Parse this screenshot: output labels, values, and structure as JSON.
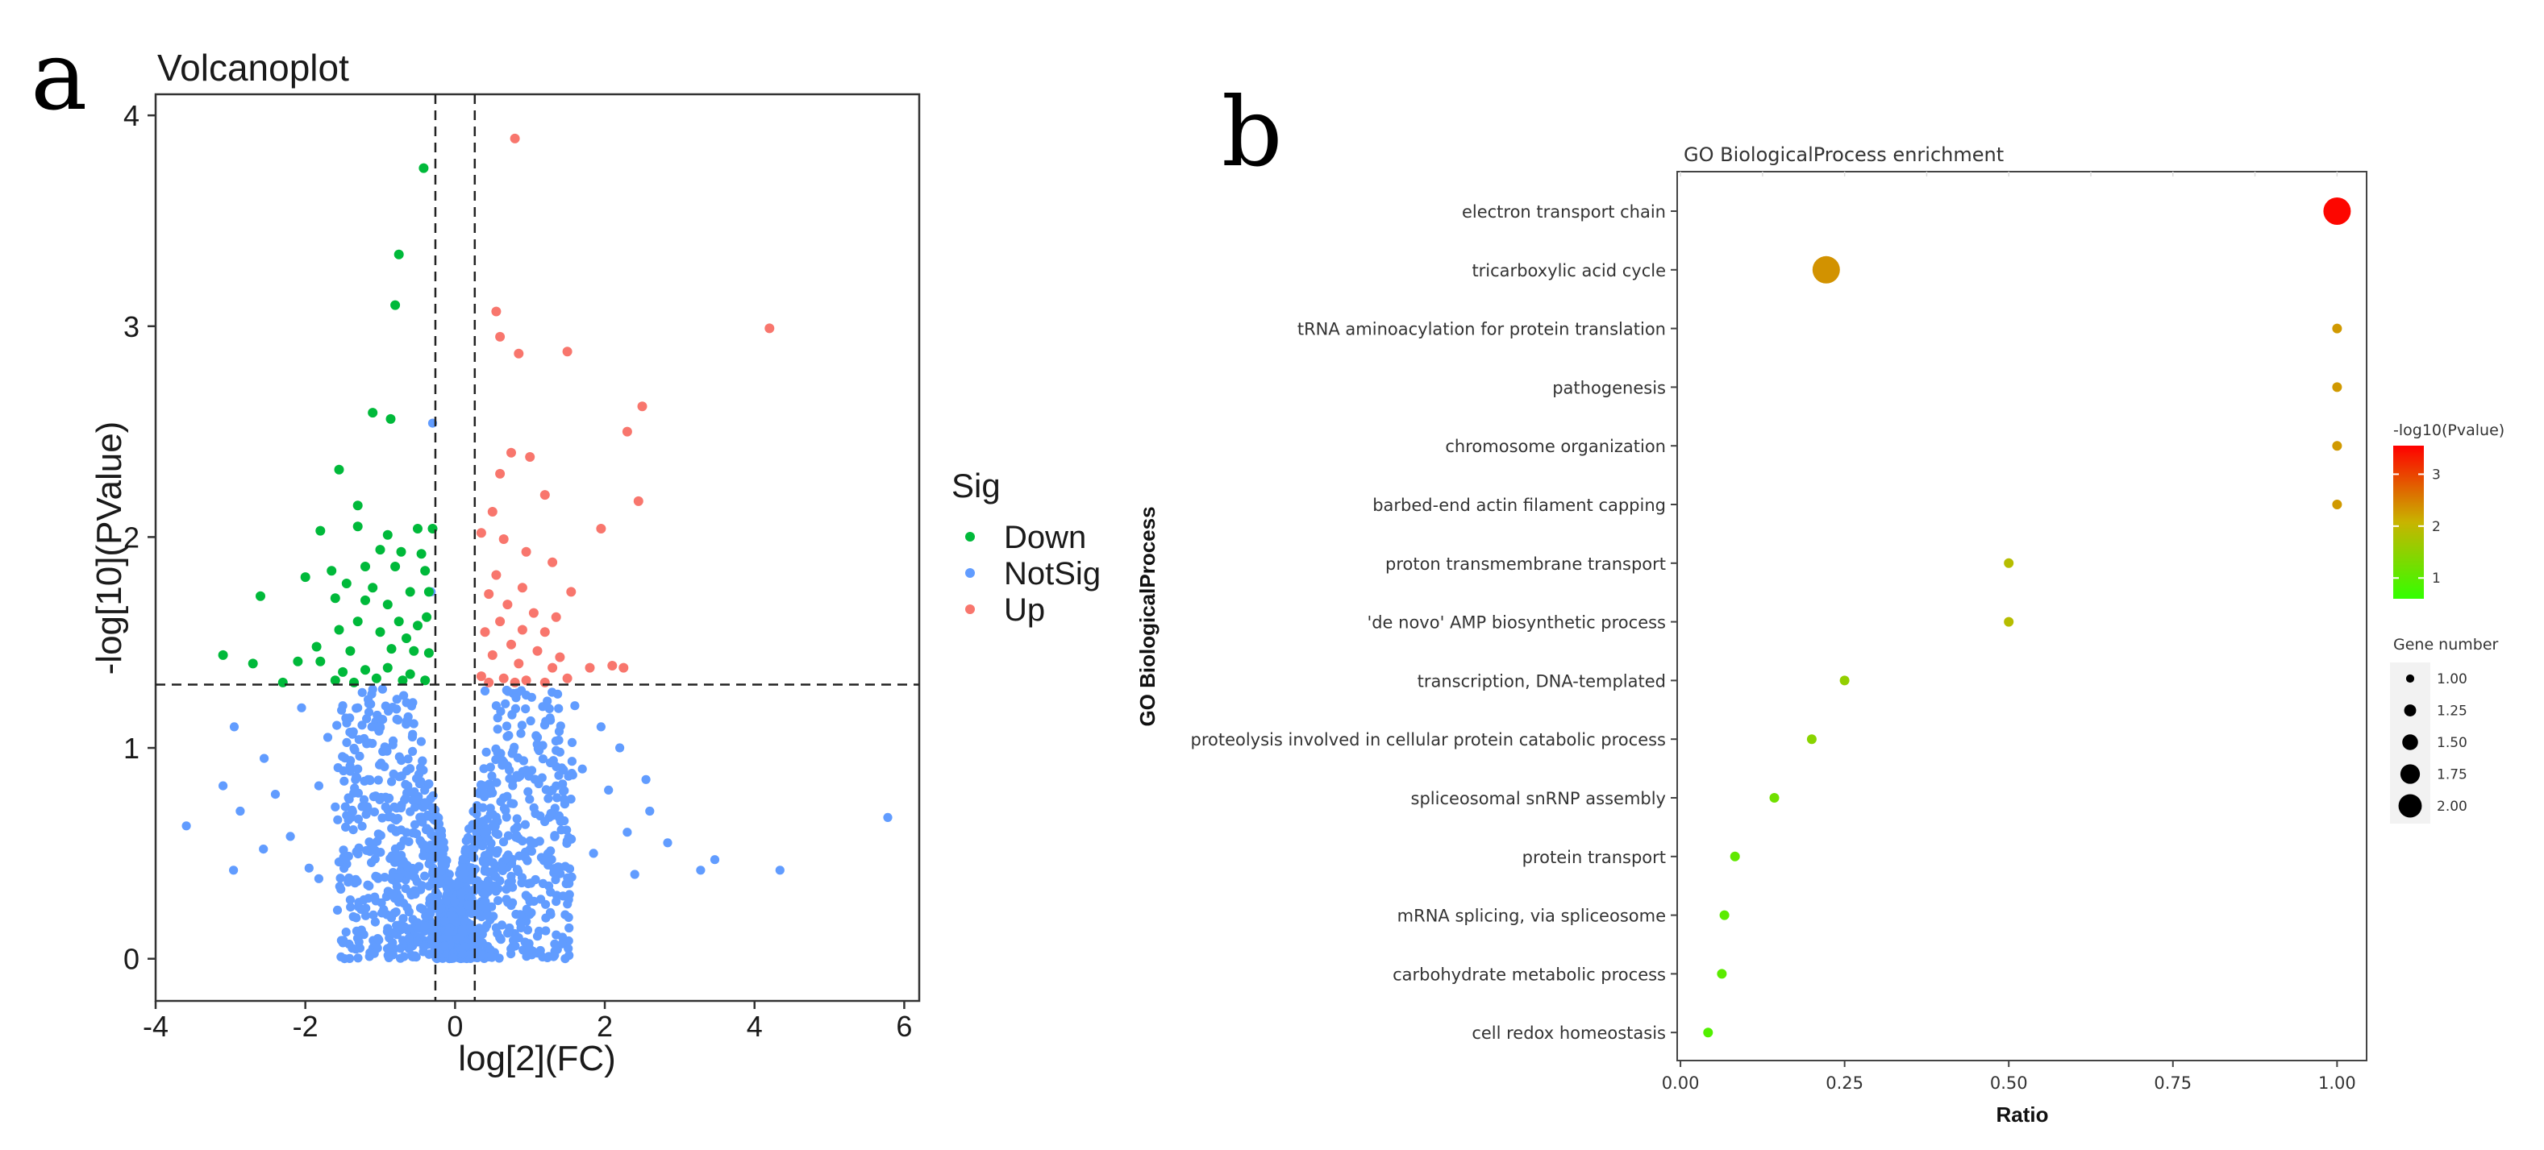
{
  "figure": {
    "panel_a_letter": "a",
    "panel_b_letter": "b"
  },
  "colors": {
    "down": "#00b93a",
    "notsig": "#619cff",
    "up": "#f8766d",
    "grad_low": "#33ff00",
    "grad_mid": "#c8b400",
    "grad_high": "#ff0000"
  },
  "chart_data": [
    {
      "type": "scatter",
      "title": "Volcanoplot",
      "xlabel": "log[2](FC)",
      "ylabel": "-log[10](PValue)",
      "xlim": [
        -4,
        6.2
      ],
      "ylim": [
        -0.2,
        4.1
      ],
      "xticks": [
        "-4",
        "-2",
        "0",
        "2",
        "4",
        "6"
      ],
      "yticks": [
        "0",
        "1",
        "2",
        "3",
        "4"
      ],
      "thresholds": {
        "fc": [
          -0.263,
          0.263
        ],
        "p": 1.3
      },
      "legend": {
        "title": "Sig",
        "position": "right",
        "entries": [
          "Down",
          "NotSig",
          "Up"
        ]
      },
      "series": [
        {
          "name": "Down",
          "points": [
            [
              -0.42,
              3.75
            ],
            [
              -0.75,
              3.34
            ],
            [
              -0.8,
              3.1
            ],
            [
              -1.1,
              2.59
            ],
            [
              -0.86,
              2.56
            ],
            [
              -1.55,
              2.32
            ],
            [
              -1.3,
              2.15
            ],
            [
              -1.8,
              2.03
            ],
            [
              -1.3,
              2.05
            ],
            [
              -0.9,
              2.01
            ],
            [
              -0.5,
              2.04
            ],
            [
              -0.3,
              2.04
            ],
            [
              -1.0,
              1.94
            ],
            [
              -0.72,
              1.93
            ],
            [
              -0.45,
              1.92
            ],
            [
              -2.0,
              1.81
            ],
            [
              -1.65,
              1.84
            ],
            [
              -1.2,
              1.86
            ],
            [
              -0.8,
              1.86
            ],
            [
              -0.4,
              1.84
            ],
            [
              -1.45,
              1.78
            ],
            [
              -1.1,
              1.76
            ],
            [
              -0.6,
              1.74
            ],
            [
              -0.35,
              1.74
            ],
            [
              -2.6,
              1.72
            ],
            [
              -1.6,
              1.71
            ],
            [
              -1.2,
              1.7
            ],
            [
              -0.9,
              1.68
            ],
            [
              -1.3,
              1.6
            ],
            [
              -0.75,
              1.6
            ],
            [
              -0.5,
              1.58
            ],
            [
              -0.38,
              1.62
            ],
            [
              -1.55,
              1.56
            ],
            [
              -1.0,
              1.55
            ],
            [
              -0.65,
              1.52
            ],
            [
              -1.85,
              1.48
            ],
            [
              -1.4,
              1.46
            ],
            [
              -0.85,
              1.47
            ],
            [
              -0.55,
              1.46
            ],
            [
              -0.35,
              1.45
            ],
            [
              -3.1,
              1.44
            ],
            [
              -2.7,
              1.4
            ],
            [
              -2.1,
              1.41
            ],
            [
              -1.8,
              1.41
            ],
            [
              -1.5,
              1.36
            ],
            [
              -1.2,
              1.37
            ],
            [
              -0.9,
              1.38
            ],
            [
              -0.6,
              1.35
            ],
            [
              -1.6,
              1.32
            ],
            [
              -1.05,
              1.33
            ],
            [
              -0.7,
              1.32
            ],
            [
              -0.4,
              1.32
            ],
            [
              -2.3,
              1.31
            ],
            [
              -1.35,
              1.31
            ]
          ]
        },
        {
          "name": "NotSig",
          "points": [
            [
              -0.3,
              2.54
            ],
            [
              -0.32,
              1.74
            ],
            [
              5.78,
              0.67
            ],
            [
              4.34,
              0.42
            ],
            [
              3.47,
              0.47
            ],
            [
              3.28,
              0.42
            ],
            [
              2.84,
              0.55
            ],
            [
              -3.59,
              0.63
            ],
            [
              -2.96,
              0.42
            ],
            [
              -2.56,
              0.52
            ],
            [
              -2.87,
              0.7
            ],
            [
              -3.1,
              0.82
            ],
            [
              -2.4,
              0.78
            ],
            [
              -2.2,
              0.58
            ],
            [
              -1.95,
              0.43
            ],
            [
              -2.95,
              1.1
            ],
            [
              -2.55,
              0.95
            ],
            [
              -2.05,
              1.19
            ],
            [
              -1.82,
              0.82
            ],
            [
              -1.6,
              0.72
            ],
            [
              -1.45,
              0.68
            ],
            [
              -1.82,
              0.38
            ],
            [
              -1.3,
              0.9
            ],
            [
              -1.0,
              1.1
            ],
            [
              -1.3,
              1.19
            ],
            [
              -1.7,
              1.05
            ],
            [
              -1.5,
              1.2
            ],
            [
              2.2,
              1.0
            ],
            [
              2.05,
              0.8
            ],
            [
              2.3,
              0.6
            ],
            [
              2.6,
              0.7
            ],
            [
              2.55,
              0.85
            ],
            [
              2.4,
              0.4
            ],
            [
              1.85,
              0.5
            ],
            [
              1.7,
              0.9
            ],
            [
              1.95,
              1.1
            ],
            [
              1.6,
              1.2
            ],
            [
              1.4,
              0.98
            ],
            [
              1.3,
              0.8
            ],
            [
              1.1,
              1.05
            ],
            [
              0.95,
              1.25
            ],
            [
              0.55,
              1.2
            ],
            [
              0.4,
              1.27
            ]
          ]
        },
        {
          "name": "Up",
          "points": [
            [
              0.8,
              3.89
            ],
            [
              0.55,
              3.07
            ],
            [
              4.2,
              2.99
            ],
            [
              0.6,
              2.95
            ],
            [
              0.85,
              2.87
            ],
            [
              1.5,
              2.88
            ],
            [
              2.5,
              2.62
            ],
            [
              2.3,
              2.5
            ],
            [
              0.75,
              2.4
            ],
            [
              1.0,
              2.38
            ],
            [
              0.6,
              2.3
            ],
            [
              1.2,
              2.2
            ],
            [
              2.45,
              2.17
            ],
            [
              0.5,
              2.12
            ],
            [
              0.35,
              2.02
            ],
            [
              1.95,
              2.04
            ],
            [
              0.65,
              1.99
            ],
            [
              0.95,
              1.93
            ],
            [
              1.3,
              1.88
            ],
            [
              0.55,
              1.82
            ],
            [
              0.9,
              1.76
            ],
            [
              1.55,
              1.74
            ],
            [
              0.45,
              1.73
            ],
            [
              0.7,
              1.68
            ],
            [
              1.05,
              1.64
            ],
            [
              1.35,
              1.62
            ],
            [
              0.6,
              1.6
            ],
            [
              0.9,
              1.56
            ],
            [
              1.2,
              1.55
            ],
            [
              0.4,
              1.55
            ],
            [
              0.75,
              1.49
            ],
            [
              1.1,
              1.46
            ],
            [
              1.4,
              1.43
            ],
            [
              0.5,
              1.44
            ],
            [
              0.85,
              1.4
            ],
            [
              1.3,
              1.38
            ],
            [
              1.8,
              1.38
            ],
            [
              2.1,
              1.39
            ],
            [
              2.25,
              1.38
            ],
            [
              0.35,
              1.34
            ],
            [
              0.65,
              1.33
            ],
            [
              0.95,
              1.32
            ],
            [
              1.2,
              1.31
            ],
            [
              1.5,
              1.33
            ],
            [
              0.45,
              1.31
            ],
            [
              0.8,
              1.31
            ]
          ]
        }
      ]
    },
    {
      "type": "scatter",
      "title": "GO BiologicalProcess enrichment",
      "xlabel": "Ratio",
      "ylabel": "GO BiologicalProcess",
      "xlim": [
        -0.005,
        1.045
      ],
      "xticks": [
        "0.00",
        "0.25",
        "0.50",
        "0.75",
        "1.00"
      ],
      "categories": [
        "electron transport chain",
        "tricarboxylic acid cycle",
        "tRNA aminoacylation for protein translation",
        "pathogenesis",
        "chromosome organization",
        "barbed-end actin filament capping",
        "proton transmembrane transport",
        "'de novo' AMP biosynthetic process",
        "transcription, DNA-templated",
        "proteolysis involved in cellular protein catabolic process",
        "spliceosomal snRNP assembly",
        "protein transport",
        "mRNA splicing, via spliceosome",
        "carbohydrate metabolic process",
        "cell redox homeostasis"
      ],
      "ratio": [
        1.0,
        0.222,
        1.0,
        1.0,
        1.0,
        1.0,
        0.5,
        0.5,
        0.25,
        0.2,
        0.143,
        0.083,
        0.067,
        0.063,
        0.042
      ],
      "neg_log10_p": [
        3.5,
        2.35,
        2.3,
        2.3,
        2.3,
        2.3,
        1.9,
        1.9,
        1.55,
        1.45,
        1.2,
        1.05,
        1.0,
        1.0,
        0.9
      ],
      "gene_number": [
        2,
        2,
        1,
        1,
        1,
        1,
        1,
        1,
        1,
        1,
        1,
        1,
        1,
        1,
        1
      ],
      "color_legend": {
        "title": "-log10(Pvalue)",
        "ticks": [
          "1",
          "2",
          "3"
        ],
        "range": [
          0.6,
          3.55
        ]
      },
      "size_legend": {
        "title": "Gene number",
        "labels": [
          "1.00",
          "1.25",
          "1.50",
          "1.75",
          "2.00"
        ]
      }
    }
  ]
}
